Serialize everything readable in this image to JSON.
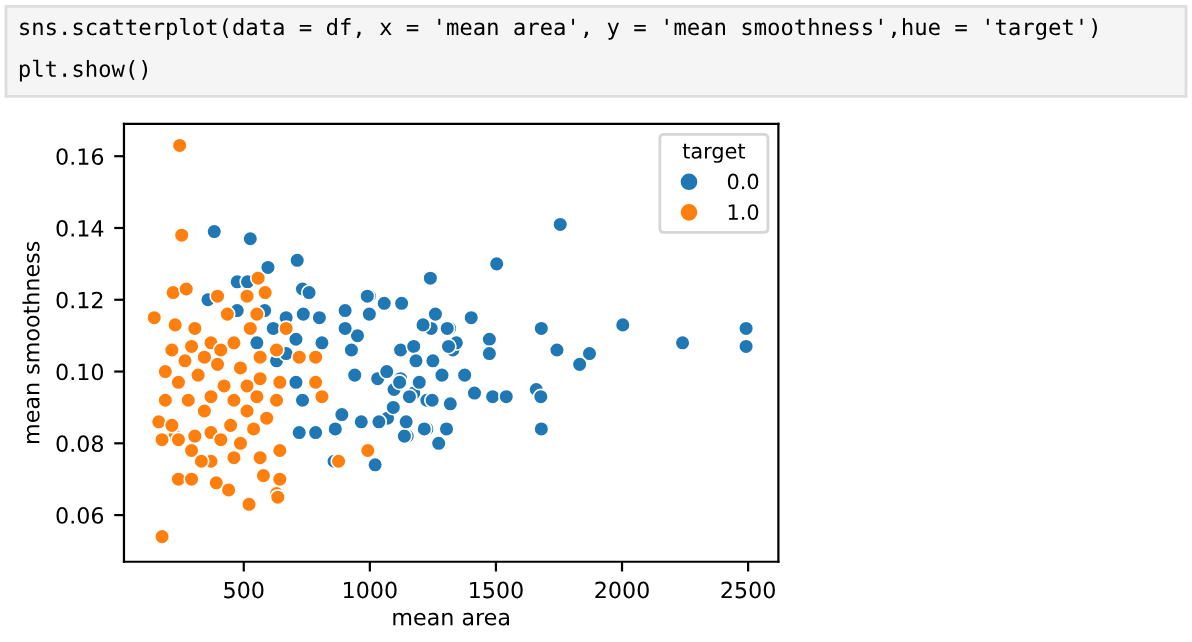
{
  "chart_data": {
    "type": "scatter",
    "xlabel": "mean area",
    "ylabel": "mean smoothness",
    "legend_title": "target",
    "legend": "top right",
    "marker": "circle",
    "grid": false,
    "annotations": [
      "sns.scatterplot(data = df, x = 'mean area', y = 'mean smoothness',hue = 'target')",
      "plt.show()"
    ],
    "xlim": [
      25,
      2620
    ],
    "ylim": [
      0.047,
      0.169
    ],
    "xticks": [
      500,
      1000,
      1500,
      2000,
      2500
    ],
    "yticks": [
      {
        "value": 0.06,
        "label": "0.06"
      },
      {
        "value": 0.08,
        "label": "0.08"
      },
      {
        "value": 0.1,
        "label": "0.10"
      },
      {
        "value": 0.12,
        "label": "0.12"
      },
      {
        "value": 0.14,
        "label": "0.14"
      },
      {
        "value": 0.16,
        "label": "0.16"
      }
    ],
    "series": [
      {
        "name": "0.0",
        "color": "#1f77b4",
        "x": [
          383,
          526,
          712,
          596,
          474,
          515,
          733,
          759,
          358,
          583,
          668,
          736,
          800,
          902,
          998,
          1057,
          474,
          951,
          902,
          998,
          617,
          707,
          810,
          927,
          1122,
          1174,
          1243,
          1316,
          1250,
          1329,
          940,
          1031,
          707,
          733,
          1122,
          1174,
          1226,
          1096,
          889,
          966,
          1070,
          1148,
          1226,
          785,
          863,
          858,
          720,
          630,
          552,
          668,
          1755,
          1503,
          1240,
          1126,
          990,
          1680,
          2003,
          2492,
          2492,
          2240,
          1871,
          1832,
          1742,
          1402,
          1474,
          1474,
          1343,
          1260,
          1211,
          1307,
          1312,
          1376,
          1415,
          1487,
          1541,
          1660,
          1678,
          1680,
          1273,
          1304,
          1216,
          1137,
          1144,
          1021,
          1036,
          1093,
          1157,
          1247,
          1319,
          1286,
          1196,
          1118,
          1067,
          1183
        ],
        "values": [
          0.139,
          0.137,
          0.131,
          0.129,
          0.125,
          0.125,
          0.123,
          0.122,
          0.12,
          0.117,
          0.115,
          0.116,
          0.115,
          0.117,
          0.121,
          0.119,
          0.117,
          0.11,
          0.112,
          0.116,
          0.112,
          0.109,
          0.108,
          0.106,
          0.106,
          0.107,
          0.112,
          0.112,
          0.103,
          0.106,
          0.099,
          0.098,
          0.097,
          0.092,
          0.098,
          0.094,
          0.092,
          0.095,
          0.088,
          0.086,
          0.087,
          0.082,
          0.084,
          0.083,
          0.084,
          0.075,
          0.083,
          0.103,
          0.108,
          0.105,
          0.141,
          0.13,
          0.126,
          0.119,
          0.121,
          0.112,
          0.113,
          0.112,
          0.107,
          0.108,
          0.105,
          0.102,
          0.106,
          0.115,
          0.109,
          0.105,
          0.108,
          0.116,
          0.113,
          0.112,
          0.107,
          0.099,
          0.094,
          0.093,
          0.093,
          0.095,
          0.093,
          0.084,
          0.08,
          0.084,
          0.084,
          0.082,
          0.086,
          0.074,
          0.086,
          0.09,
          0.093,
          0.092,
          0.091,
          0.099,
          0.097,
          0.097,
          0.1,
          0.103
        ]
      },
      {
        "name": "1.0",
        "color": "#ff7f0e",
        "x": [
          246,
          254,
          176,
          145,
          220,
          272,
          557,
          585,
          513,
          396,
          228,
          306,
          215,
          293,
          370,
          461,
          526,
          668,
          630,
          189,
          241,
          319,
          396,
          487,
          565,
          643,
          785,
          810,
          189,
          280,
          370,
          461,
          552,
          630,
          163,
          228,
          241,
          176,
          306,
          370,
          448,
          539,
          591,
          643,
          992,
          876,
          293,
          370,
          461,
          565,
          241,
          293,
          391,
          440,
          521,
          578,
          643,
          630,
          635,
          785,
          720,
          422,
          344,
          513,
          215,
          409,
          487,
          332,
          409,
          344,
          565,
          513,
          267,
          552,
          435
        ],
        "values": [
          0.163,
          0.138,
          0.054,
          0.115,
          0.122,
          0.123,
          0.126,
          0.122,
          0.121,
          0.121,
          0.113,
          0.112,
          0.106,
          0.107,
          0.108,
          0.108,
          0.112,
          0.112,
          0.106,
          0.1,
          0.097,
          0.099,
          0.102,
          0.101,
          0.098,
          0.097,
          0.097,
          0.093,
          0.092,
          0.092,
          0.093,
          0.092,
          0.093,
          0.092,
          0.086,
          0.082,
          0.081,
          0.081,
          0.082,
          0.083,
          0.085,
          0.084,
          0.087,
          0.078,
          0.078,
          0.075,
          0.078,
          0.075,
          0.076,
          0.076,
          0.07,
          0.07,
          0.069,
          0.067,
          0.063,
          0.071,
          0.07,
          0.066,
          0.065,
          0.104,
          0.104,
          0.096,
          0.089,
          0.089,
          0.085,
          0.081,
          0.08,
          0.075,
          0.106,
          0.104,
          0.104,
          0.096,
          0.103,
          0.116,
          0.116
        ]
      }
    ]
  }
}
